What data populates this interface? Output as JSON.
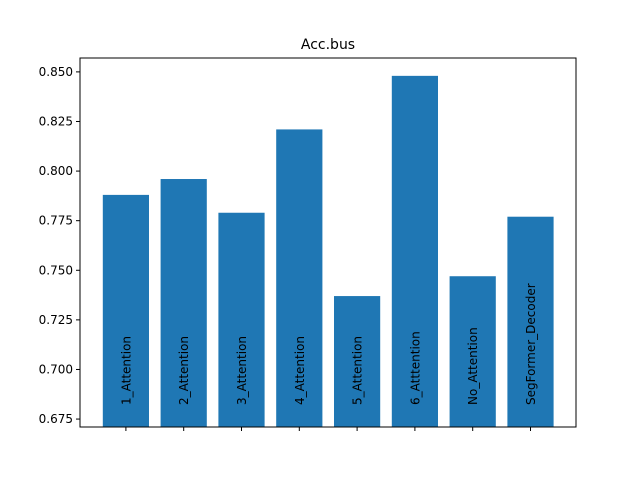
{
  "chart_data": {
    "type": "bar",
    "title": "Acc.bus",
    "xlabel": "",
    "ylabel": "",
    "categories": [
      "1_Attention",
      "2_Attention",
      "3_Attention",
      "4_Attention",
      "5_Attention",
      "6_Atttention",
      "No_Attention",
      "SegFormer_Decoder"
    ],
    "values": [
      0.788,
      0.796,
      0.779,
      0.821,
      0.737,
      0.848,
      0.747,
      0.777
    ],
    "ylim": [
      0.671,
      0.857
    ],
    "yticks": [
      "0.675",
      "0.700",
      "0.725",
      "0.750",
      "0.775",
      "0.800",
      "0.825",
      "0.850"
    ],
    "bar_color": "#1f77b4",
    "grid": false,
    "legend": "none",
    "category_labels_placement": "inside bars, rotated vertical"
  }
}
